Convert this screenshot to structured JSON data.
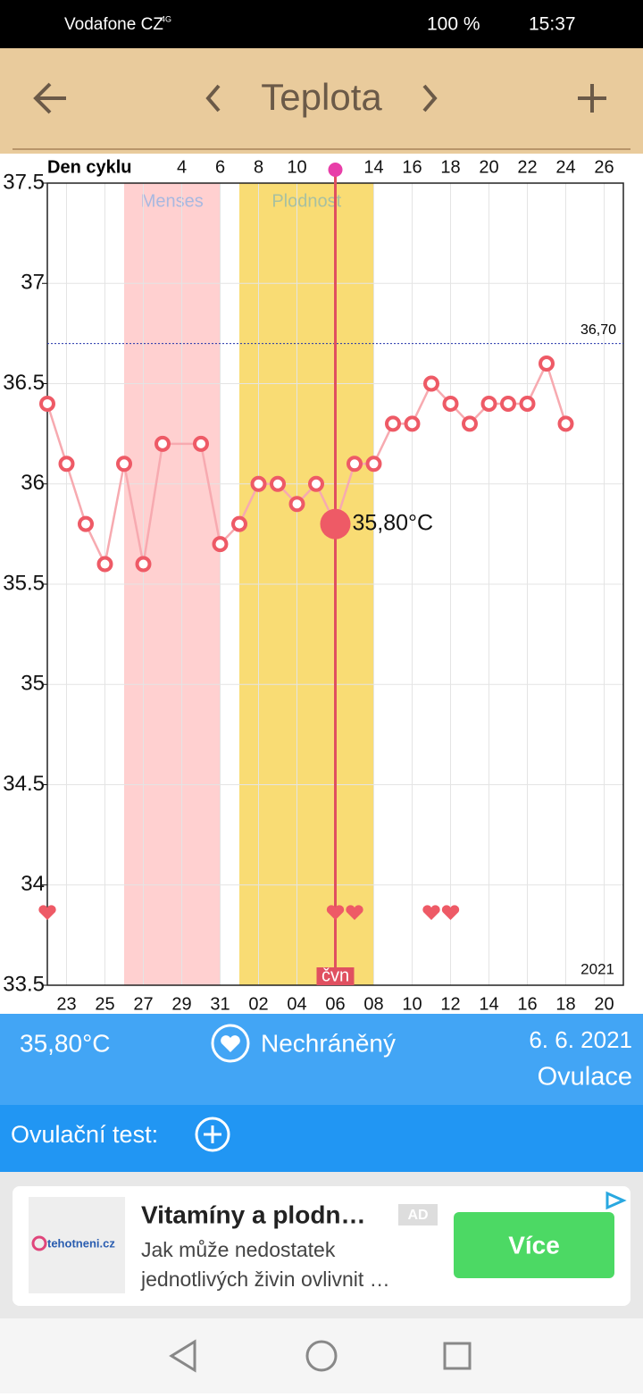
{
  "status_bar": {
    "carrier": "Vodafone CZ",
    "network": "4G",
    "battery": "100 %",
    "time": "15:37"
  },
  "header": {
    "title": "Teplota"
  },
  "chart_data": {
    "type": "line",
    "top_axis_title": "Den cyklu",
    "categories": [
      null,
      "23",
      null,
      "25",
      null,
      "27",
      null,
      "29",
      null,
      "31",
      null,
      "02",
      null,
      "04",
      null,
      "06",
      null,
      "08",
      null,
      "10",
      null,
      "12",
      null,
      "14",
      null,
      "16",
      null,
      "18",
      null,
      "20"
    ],
    "cycle_days": [
      null,
      null,
      null,
      null,
      null,
      null,
      null,
      4,
      null,
      6,
      null,
      8,
      null,
      10,
      null,
      null,
      null,
      14,
      null,
      16,
      null,
      18,
      null,
      20,
      null,
      22,
      null,
      24,
      null,
      26
    ],
    "values": [
      36.4,
      36.1,
      35.8,
      35.6,
      36.1,
      35.6,
      36.2,
      null,
      36.2,
      35.7,
      35.8,
      36.0,
      36.0,
      35.9,
      36.0,
      35.8,
      36.1,
      36.1,
      36.3,
      36.3,
      36.5,
      36.4,
      36.3,
      36.4,
      36.4,
      36.4,
      36.6,
      36.3,
      null,
      null
    ],
    "color": "#ee5a66",
    "line_color": "#f7aab0",
    "span_gaps": true,
    "ylim": [
      33.5,
      37.5
    ],
    "yticks": [
      33.5,
      34,
      34.5,
      35,
      35.5,
      36,
      36.5,
      37,
      37.5
    ],
    "grid": true,
    "threshold": {
      "value": 36.7,
      "label": "36,70"
    },
    "selected": {
      "index": 15,
      "value_label": "35,80°C",
      "month_label": "čvn"
    },
    "year_label": "2021",
    "bands": [
      {
        "label": "Menses",
        "start": 4,
        "end": 9,
        "color": "#ffd0d0"
      },
      {
        "label": "Plodnost",
        "start": 10,
        "end": 17,
        "color": "#f9dc74"
      }
    ],
    "hearts": [
      0,
      15,
      16,
      20,
      21
    ]
  },
  "info": {
    "temperature": "35,80°C",
    "status": "Nechráněný",
    "date": "6. 6. 2021",
    "phase": "Ovulace"
  },
  "ovulation_test": {
    "label": "Ovulační test:"
  },
  "ad": {
    "title": "Vitamíny a plodn…",
    "badge": "AD",
    "line1": "Jak může nedostatek",
    "line2": "jednotlivých živin ovlivnit …",
    "button": "Více",
    "logo": "tehotneni.cz"
  }
}
